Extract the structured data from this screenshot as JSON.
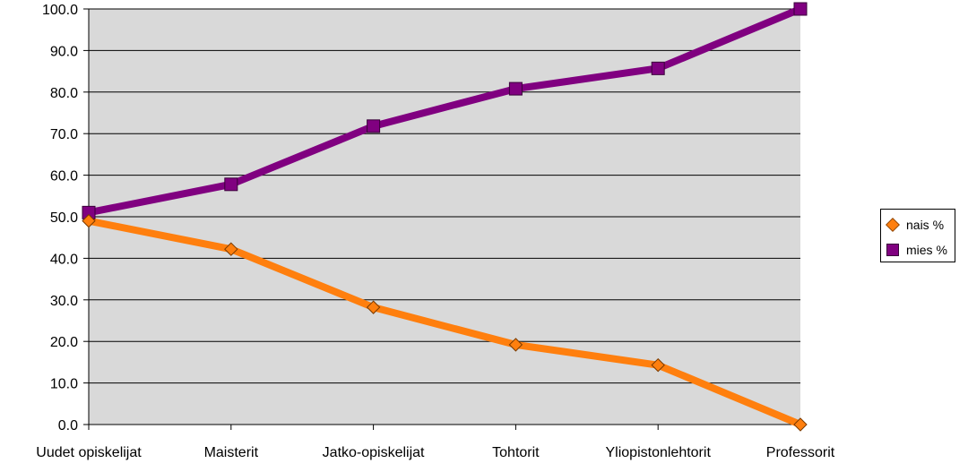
{
  "chart_data": {
    "type": "line",
    "categories": [
      "Uudet opiskelijat",
      "Maisterit",
      "Jatko-opiskelijat",
      "Tohtorit",
      "Yliopistonlehtorit",
      "Professorit"
    ],
    "series": [
      {
        "name": "nais %",
        "values": [
          49.0,
          42.2,
          28.2,
          19.2,
          14.3,
          0.0
        ],
        "color": "#ff7f0e",
        "marker": "diamond"
      },
      {
        "name": "mies %",
        "values": [
          51.0,
          57.8,
          71.8,
          80.8,
          85.7,
          100.0
        ],
        "color": "#800080",
        "marker": "square"
      }
    ],
    "ylim": [
      0,
      100
    ],
    "yticks": [
      "0.0",
      "10.0",
      "20.0",
      "30.0",
      "40.0",
      "50.0",
      "60.0",
      "70.0",
      "80.0",
      "90.0",
      "100.0"
    ],
    "grid": true,
    "plot_background": "#d9d9d9",
    "legend_position": "right",
    "title": "",
    "xlabel": "",
    "ylabel": ""
  }
}
